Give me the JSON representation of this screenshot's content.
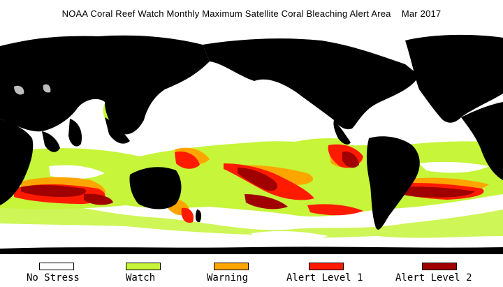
{
  "title": "NOAA Coral Reef Watch Monthly Maximum Satellite Coral Bleaching Alert Area    Mar 2017",
  "legend": [
    {
      "label": "No Stress",
      "color": "#ffffff"
    },
    {
      "label": "Watch",
      "color": "#c6f53a"
    },
    {
      "label": "Warning",
      "color": "#ffa500"
    },
    {
      "label": "Alert Level 1",
      "color": "#ff1a00"
    },
    {
      "label": "Alert Level 2",
      "color": "#a00000"
    }
  ],
  "colors": {
    "land": "#000000",
    "no_data": "#bdbdbd"
  }
}
